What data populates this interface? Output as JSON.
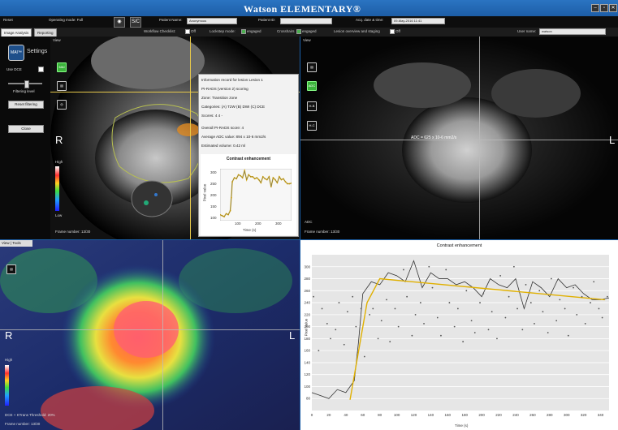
{
  "app": {
    "brand": "Watson ELEMENTARY®",
    "window_buttons": [
      "–",
      "▫",
      "✕"
    ]
  },
  "toolbar": {
    "reset": "Reset",
    "operating_mode_label": "Operating mode: Full",
    "eye_icon": "eye-icon",
    "sc_label": "S/C",
    "patient_name_label": "Patient Name:",
    "patient_name_value": "Anonymous",
    "patient_id_label": "Patient ID:",
    "acq_label": "Acq. date & time:",
    "acq_value": "09-May-2016 11:41"
  },
  "subbar": {
    "tab_image_analysis": "Image Analysis",
    "tab_reporting": "Reporting",
    "workflow_checklist": "Workflow Checklist:",
    "workflow_off": "Off",
    "lockstep_label": "Lockstep mode:",
    "lockstep_val": "engaged",
    "crosshairs_label": "Crosshairs",
    "crosshairs_val": "engaged",
    "lesion_label": "Lesion overview and staging",
    "lesion_val": "Off",
    "user_label": "User name:",
    "user_value": "watson"
  },
  "left_panel": {
    "mai_label": "MAI™",
    "settings": "Settings",
    "use_dce": "Use DCE",
    "filtering_level": "Filtering level",
    "reset_filtering": "Reset filtering",
    "close": "Close"
  },
  "viewport_tl": {
    "title": "View",
    "icon_mai": "MAI",
    "R": "R",
    "colorbar_high": "High",
    "colorbar_low": "Low",
    "frame": "Frame number: 13/30"
  },
  "info_box": {
    "title": "Information record for lesion Lesion 1",
    "scoring": "PI-RADS (version 2) scoring",
    "zone": "Zone: Transition zone",
    "categories": "Categories: (A) T2W  (B) DWI  (C) DCE",
    "scores": "Scores:     4         4         -",
    "overall": "Overall PI-RADS score:   4",
    "adc": "Average ADC value:   894 x 10-6 mm2/s",
    "volume": "Estimated volume:   0.42 ml"
  },
  "viewport_tr": {
    "title": "View",
    "icons": [
      "ADC",
      "H-B",
      "H-C"
    ],
    "adc_measure": "ADC = 625 x 10-6 mm2/s",
    "L": "L",
    "label": "ADC",
    "frame": "Frame number: 13/30"
  },
  "viewport_bl": {
    "title": "View | Tools",
    "R": "R",
    "L": "L",
    "colorbar_high": "High",
    "frame": "Frame number: 13/30",
    "overlay_label": "DCE + KTrans Threshold: 20%"
  },
  "mini_chart": {
    "title": "Contrast enhancement",
    "ylabel": "Pixel value",
    "xlabel": "Time (s)",
    "x_ticks": [
      "100",
      "200",
      "300"
    ],
    "y_ticks": [
      "300",
      "250",
      "200",
      "150",
      "100"
    ]
  },
  "chart_data": {
    "type": "line",
    "title": "Contrast enhancement",
    "xlabel": "Time (s)",
    "ylabel": "Pixel value",
    "xlim": [
      0,
      350
    ],
    "ylim": [
      60,
      320
    ],
    "x_ticks": [
      0,
      20,
      40,
      60,
      80,
      100,
      120,
      140,
      160,
      180,
      200,
      220,
      240,
      260,
      280,
      300,
      320,
      340
    ],
    "y_ticks": [
      80,
      100,
      120,
      140,
      160,
      180,
      200,
      220,
      240,
      260,
      280,
      300
    ],
    "colors": {
      "curve": "#333333",
      "fit": "#e0b000",
      "points": "#555555"
    },
    "series": [
      {
        "kind": "line",
        "x": [
          0,
          10,
          20,
          30,
          40,
          50,
          55,
          60,
          70,
          80,
          90,
          100,
          110,
          120,
          130,
          140,
          150,
          160,
          170,
          180,
          190,
          200,
          210,
          220,
          230,
          240,
          250,
          260,
          270,
          280,
          290,
          300,
          310,
          320,
          330,
          340,
          350
        ],
        "y": [
          90,
          85,
          80,
          95,
          90,
          110,
          175,
          255,
          275,
          270,
          290,
          285,
          275,
          310,
          265,
          290,
          280,
          280,
          270,
          275,
          265,
          250,
          280,
          270,
          265,
          280,
          230,
          275,
          265,
          250,
          280,
          265,
          270,
          255,
          245,
          245,
          248
        ]
      },
      {
        "kind": "fit",
        "x": [
          45,
          65,
          80,
          345
        ],
        "y": [
          78,
          240,
          280,
          245
        ]
      },
      {
        "kind": "scatter",
        "x": [
          2,
          8,
          12,
          18,
          22,
          28,
          32,
          38,
          42,
          48,
          52,
          58,
          62,
          68,
          72,
          78,
          82,
          88,
          92,
          98,
          102,
          108,
          112,
          118,
          122,
          128,
          132,
          138,
          142,
          148,
          152,
          158,
          162,
          168,
          172,
          178,
          182,
          188,
          192,
          198,
          202,
          208,
          212,
          218,
          222,
          228,
          232,
          238,
          242,
          248,
          252,
          258,
          262,
          268,
          272,
          278,
          282,
          288,
          292,
          298,
          302,
          308,
          312,
          318,
          322,
          328,
          332,
          338,
          342,
          348
        ],
        "y": [
          250,
          160,
          230,
          205,
          180,
          195,
          240,
          170,
          225,
          250,
          200,
          230,
          150,
          220,
          230,
          180,
          210,
          245,
          175,
          230,
          200,
          295,
          250,
          185,
          220,
          240,
          205,
          300,
          265,
          215,
          185,
          295,
          240,
          200,
          230,
          175,
          260,
          210,
          190,
          240,
          255,
          195,
          225,
          180,
          285,
          215,
          250,
          300,
          230,
          195,
          270,
          240,
          205,
          260,
          225,
          190,
          280,
          210,
          245,
          230,
          185,
          265,
          220,
          250,
          205,
          240,
          275,
          230,
          215,
          250
        ]
      }
    ]
  }
}
